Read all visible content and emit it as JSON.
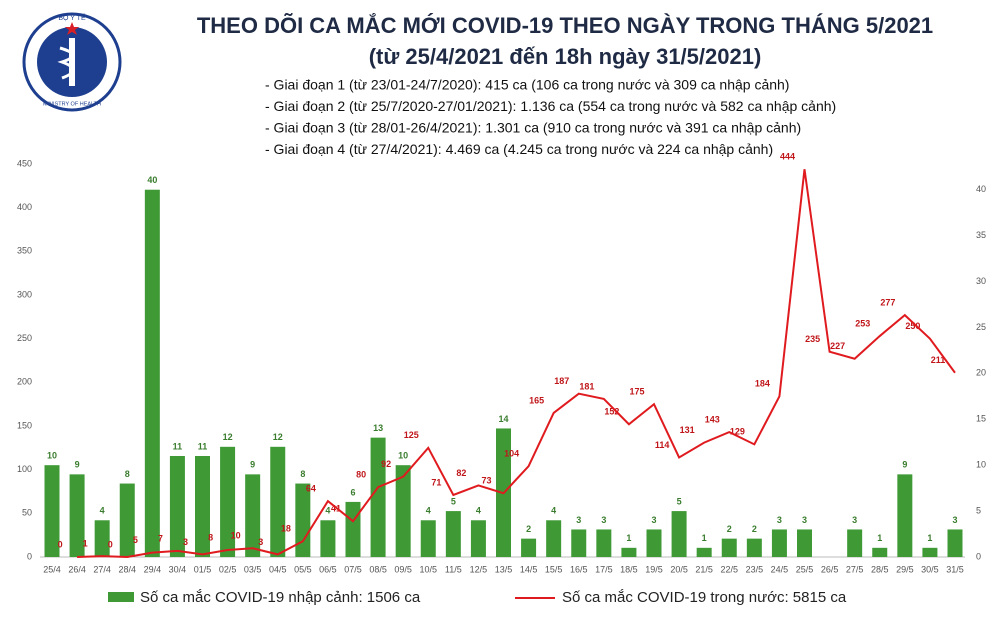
{
  "chart_data": {
    "type": "bar-line",
    "title": "THEO DÕI CA MẮC MỚI COVID-19 THEO NGÀY TRONG THÁNG 5/2021",
    "subtitle": "(từ 25/4/2021 đến 18h ngày 31/5/2021)",
    "notes": [
      "- Giai đoạn 1 (từ 23/01-24/7/2020): 415 ca (106 ca trong nước và 309 ca nhập cảnh)",
      "- Giai đoạn 2 (từ 25/7/2020-27/01/2021): 1.136 ca (554 ca trong nước và 582 ca nhập cảnh)",
      "- Giai đoạn 3 (từ 28/01-26/4/2021): 1.301 ca (910 ca trong nước và 391 ca nhập cảnh)",
      "- Giai đoạn 4 (từ 27/4/2021): 4.469 ca (4.245 ca trong nước và 224 ca nhập cảnh)"
    ],
    "logo_top": "BỘ Y TẾ",
    "logo_bottom": "MINISTRY OF HEALTH",
    "categories": [
      "25/4",
      "26/4",
      "27/4",
      "28/4",
      "29/4",
      "30/4",
      "01/5",
      "02/5",
      "03/5",
      "04/5",
      "05/5",
      "06/5",
      "07/5",
      "08/5",
      "09/5",
      "10/5",
      "11/5",
      "12/5",
      "13/5",
      "14/5",
      "15/5",
      "16/5",
      "17/5",
      "18/5",
      "19/5",
      "20/5",
      "21/5",
      "22/5",
      "23/5",
      "24/5",
      "25/5",
      "26/5",
      "27/5",
      "28/5",
      "29/5",
      "30/5",
      "31/5"
    ],
    "series": [
      {
        "name": "Số ca mắc COVID-19 nhập cảnh: 1506 ca",
        "type": "bar",
        "axis": "y2",
        "color": "#3f9a36",
        "values": [
          10,
          9,
          4,
          8,
          40,
          11,
          11,
          12,
          9,
          12,
          8,
          4,
          6,
          13,
          10,
          4,
          5,
          4,
          14,
          2,
          4,
          3,
          3,
          1,
          3,
          5,
          1,
          2,
          2,
          3,
          3,
          null,
          3,
          1,
          9,
          1,
          3
        ]
      },
      {
        "name": "Số ca mắc COVID-19 trong nước: 5815 ca",
        "type": "line",
        "axis": "y",
        "color": "#e01b1f",
        "values": [
          null,
          0,
          1,
          0,
          5,
          7,
          3,
          8,
          10,
          3,
          18,
          64,
          41,
          80,
          92,
          125,
          71,
          82,
          73,
          104,
          165,
          187,
          181,
          152,
          175,
          114,
          131,
          143,
          129,
          184,
          444,
          235,
          227,
          253,
          277,
          250,
          211
        ]
      }
    ],
    "ylim": [
      0,
      450
    ],
    "yticks": [
      0,
      50,
      100,
      150,
      200,
      250,
      300,
      350,
      400,
      450
    ],
    "y2lim": [
      0,
      42.8
    ],
    "y2ticks": [
      0,
      5,
      10,
      15,
      20,
      25,
      30,
      35,
      40
    ]
  }
}
